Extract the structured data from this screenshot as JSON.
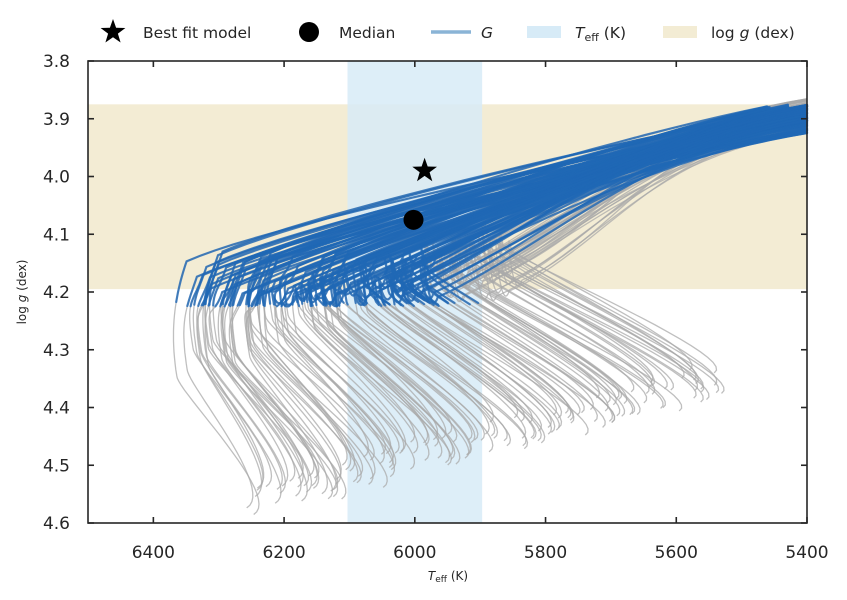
{
  "chart_data": {
    "type": "line",
    "xlabel": {
      "main": "T",
      "sub": "eff",
      "unit": " (K)"
    },
    "ylabel": {
      "pre": "log ",
      "var": "g",
      "unit": " (dex)"
    },
    "xlim": [
      6500,
      5400
    ],
    "ylim": [
      4.6,
      3.8
    ],
    "x_inverted": true,
    "y_inverted": true,
    "xticks": [
      6400,
      6200,
      6000,
      5800,
      5600,
      5400
    ],
    "yticks": [
      3.8,
      3.9,
      4.0,
      4.1,
      4.2,
      4.3,
      4.4,
      4.5,
      4.6
    ],
    "grid": false,
    "legend_position": "top (above plot)",
    "legend": [
      {
        "key": "best_fit",
        "label": "Best fit model",
        "marker": "star",
        "color": "#000000"
      },
      {
        "key": "median",
        "label": "Median",
        "marker": "circle",
        "color": "#000000"
      },
      {
        "key": "G",
        "label": "G",
        "marker": "line",
        "color": "#8ab4d6"
      },
      {
        "key": "teff_band",
        "label_main": "T",
        "label_sub": "eff",
        "label_unit": " (K)",
        "marker": "patch",
        "color": "#d7ebf7"
      },
      {
        "key": "logg_band",
        "label_pre": "log ",
        "label_var": "g",
        "label_unit": " (dex)",
        "marker": "patch",
        "color": "#f3ecd4"
      }
    ],
    "points": {
      "best_fit": {
        "teff": 5985,
        "logg": 3.99
      },
      "median": {
        "teff": 6002,
        "logg": 4.075
      }
    },
    "bands": {
      "teff": {
        "min": 5897,
        "max": 6103,
        "color": "#d7ebf7"
      },
      "logg": {
        "min": 3.875,
        "max": 4.195,
        "color": "#f3ecd4"
      }
    },
    "colors": {
      "track_gray": "#aaaaaa",
      "track_blue": "#1f68b5",
      "axes": "#262626"
    },
    "tracks": {
      "count": 150,
      "description": "Evolutionary tracks; blue = within G (logg) window, gray = outside",
      "teff_turnoff_range": [
        6330,
        5850
      ],
      "logg_zams_range": [
        4.56,
        4.36
      ]
    }
  }
}
